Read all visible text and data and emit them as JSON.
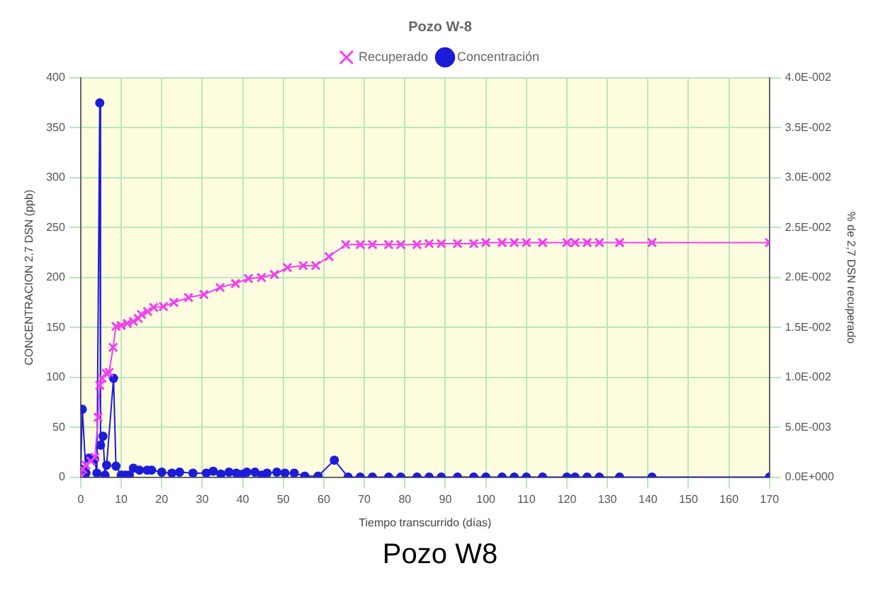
{
  "chart_data": {
    "type": "line",
    "title": "Pozo W8",
    "legend_title": "Pozo W-8",
    "xlabel": "Tiempo transcurrido (días)",
    "ylabel": "CONCENTRACION 2,7 DSN (ppb)",
    "y2label": "% de 2,7 DSN recuperado",
    "xlim": [
      0,
      170
    ],
    "xticks": [
      0,
      10,
      20,
      30,
      40,
      50,
      60,
      70,
      80,
      90,
      100,
      110,
      120,
      130,
      140,
      150,
      160,
      170
    ],
    "ylim": [
      0,
      400
    ],
    "yticks": [
      0,
      50,
      100,
      150,
      200,
      250,
      300,
      350,
      400
    ],
    "y2lim": [
      0,
      0.04
    ],
    "y2ticks": [
      {
        "value": 0,
        "label": "0.0E+000"
      },
      {
        "value": 0.005,
        "label": "5.0E-003"
      },
      {
        "value": 0.01,
        "label": "1.0E-002"
      },
      {
        "value": 0.015,
        "label": "1.5E-002"
      },
      {
        "value": 0.02,
        "label": "2.0E-002"
      },
      {
        "value": 0.025,
        "label": "2.5E-002"
      },
      {
        "value": 0.03,
        "label": "3.0E-002"
      },
      {
        "value": 0.035,
        "label": "3.5E-002"
      },
      {
        "value": 0.04,
        "label": "4.0E-002"
      }
    ],
    "grid": true,
    "legend": "top",
    "series": [
      {
        "name": "Concentración",
        "color": "#1c1cd8",
        "marker": "circle",
        "x": [
          0,
          0.4,
          1.3,
          2,
          3.4,
          4,
          4.7,
          4.9,
          5.5,
          6,
          6.4,
          8.1,
          8.7,
          10,
          11,
          12,
          13,
          14.5,
          16.4,
          17.5,
          20,
          22.5,
          24.4,
          27.7,
          31,
          32.7,
          34.6,
          36.6,
          38.4,
          40,
          41,
          43,
          44.7,
          46,
          48.4,
          50.4,
          52.7,
          55.3,
          58.6,
          62.6,
          66,
          69,
          72,
          76,
          79,
          83,
          86,
          89,
          93,
          97,
          100,
          104,
          107,
          110,
          114,
          120,
          122,
          125,
          128,
          133,
          141,
          170
        ],
        "values": [
          8,
          68,
          4,
          19,
          18,
          4,
          375,
          32,
          41,
          2,
          12,
          99,
          11,
          2,
          2,
          2,
          9,
          7,
          7,
          7,
          5,
          4,
          5,
          4,
          4,
          6,
          3,
          5,
          4,
          3,
          5,
          5,
          2,
          4,
          5,
          4,
          4,
          1,
          1,
          17,
          0,
          0,
          0,
          0,
          0,
          0,
          0,
          0,
          0,
          0,
          0,
          0,
          0,
          0,
          0,
          0,
          0,
          0,
          0,
          0,
          0,
          0
        ]
      },
      {
        "name": "Recuperado",
        "color": "#f040f0",
        "marker": "cross",
        "axis": "y2",
        "x": [
          0,
          0.5,
          1.3,
          2.5,
          3.5,
          4.3,
          4.7,
          5.3,
          6.3,
          7,
          8,
          8.7,
          10,
          11.5,
          13,
          14.2,
          15,
          16.5,
          18,
          20.4,
          23,
          26.6,
          30.4,
          34.4,
          38.2,
          41.4,
          44.6,
          47.8,
          51,
          54.9,
          58,
          61.3,
          65.4,
          69,
          72,
          76,
          79,
          83,
          86,
          89,
          93,
          97,
          100,
          104,
          107,
          110,
          114,
          120,
          122,
          125,
          128,
          133,
          141,
          170
        ],
        "values": [
          0,
          0.0008,
          0.0012,
          0.0016,
          0.002,
          0.006,
          0.0092,
          0.0099,
          0.0104,
          0.0105,
          0.013,
          0.0151,
          0.0152,
          0.0154,
          0.0156,
          0.0159,
          0.0163,
          0.0166,
          0.017,
          0.0171,
          0.0175,
          0.018,
          0.0183,
          0.019,
          0.0194,
          0.0199,
          0.02,
          0.0203,
          0.021,
          0.0212,
          0.0212,
          0.0221,
          0.0233,
          0.0233,
          0.0233,
          0.0233,
          0.0233,
          0.0233,
          0.0234,
          0.0234,
          0.0234,
          0.0234,
          0.0235,
          0.0235,
          0.0235,
          0.0235,
          0.0235,
          0.0235,
          0.0235,
          0.0235,
          0.0235,
          0.0235,
          0.0235,
          0.0235
        ]
      }
    ]
  }
}
